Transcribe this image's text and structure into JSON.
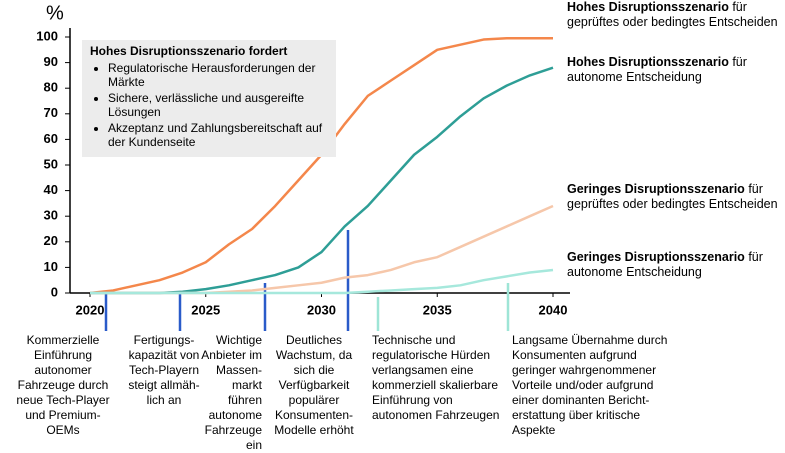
{
  "chart_data": {
    "type": "line",
    "y_label": "%",
    "x": [
      2020,
      2021,
      2022,
      2023,
      2024,
      2025,
      2026,
      2027,
      2028,
      2029,
      2030,
      2031,
      2032,
      2033,
      2034,
      2035,
      2036,
      2037,
      2038,
      2039,
      2040
    ],
    "xlim": [
      2020,
      2040
    ],
    "xticks": [
      2020,
      2025,
      2030,
      2035,
      2040
    ],
    "ylim": [
      0,
      100
    ],
    "yticks": [
      0,
      10,
      20,
      30,
      40,
      50,
      60,
      70,
      80,
      90,
      100
    ],
    "series": [
      {
        "scenario": "Hohes Disruptionsszenario",
        "decision": "für geprüftes oder bedingtes Entscheiden",
        "color": "#f4874b",
        "values": [
          0,
          1,
          3,
          5,
          8,
          12,
          19,
          25,
          34,
          44,
          54,
          66,
          77,
          83,
          89,
          95,
          97,
          99,
          99.5,
          99.5,
          99.5
        ]
      },
      {
        "scenario": "Hohes Disruptionsszenario",
        "decision": "für autonome Entscheidung",
        "color": "#2e9e96",
        "values": [
          0,
          0,
          0,
          0,
          0.5,
          1.5,
          3,
          5,
          7,
          10,
          16,
          26,
          34,
          44,
          54,
          61,
          69,
          76,
          81,
          85,
          88
        ]
      },
      {
        "scenario": "Geringes Disruptionsszenario",
        "decision": "für geprüftes oder bedingtes Entscheiden",
        "color": "#f6c7aa",
        "values": [
          0,
          0,
          0,
          0,
          0,
          0,
          0.5,
          1,
          2,
          3,
          4,
          6,
          7,
          9,
          12,
          14,
          18,
          22,
          26,
          30,
          34
        ]
      },
      {
        "scenario": "Geringes Disruptionsszenario",
        "decision": "für autonome Entscheidung",
        "color": "#a6e8dc",
        "values": [
          0,
          0,
          0,
          0,
          0,
          0,
          0,
          0,
          0,
          0,
          0,
          0,
          0.5,
          1,
          1.5,
          2,
          3,
          5,
          6.5,
          8,
          9
        ]
      }
    ],
    "box": {
      "title": "Hohes Disruptionsszenario fordert",
      "items": [
        "Regulatorische Herausforderungen der Märkte",
        "Sichere, verlässliche und ausgereifte Lösungen",
        "Akzeptanz und Zahlungsbereitschaft auf der Kundenseite"
      ]
    },
    "notes": [
      "Kommerzielle\nEinführung\nautonomer\nFahrzeuge durch\nneue Tech-Player\nund Premium-\nOEMs",
      "Fertigungs-\nkapazität von\nTech-Playern\nsteigt allmäh-\nlich an",
      "Wichtige\nAnbieter im\nMassen-\nmarkt führen\nautonome\nFahrzeuge\nein",
      "Deutliches\nWachstum, da\nsich die\nVerfügbarkeit\npopulärer\nKonsumenten-\nModelle erhöht",
      "Technische und\nregulatorische Hürden\nverlangsamen eine\nkommerziell skalierbare\nEinführung von\nautonomen Fahrzeugen",
      "Langsame Übernahme durch\nKonsumenten aufgrund\ngeringer wahrgenommener\nVorteile und/oder aufgrund\neiner dominanten Bericht-\nerstattung über kritische\nAspekte"
    ]
  }
}
